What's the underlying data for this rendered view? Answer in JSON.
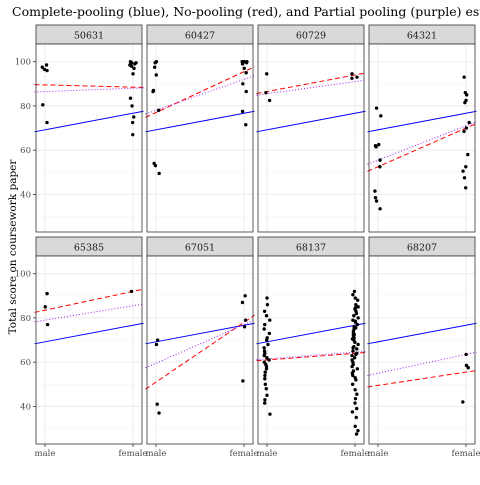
{
  "chart_data": {
    "type": "scatter",
    "title": "Complete-pooling (blue), No-pooling (red), and Partial pooling (purple) estimates",
    "ylabel": "Total score on coursework paper",
    "xlabel": "",
    "x_categories": [
      "male",
      "female"
    ],
    "yticks": [
      40,
      60,
      80,
      100
    ],
    "ylim": [
      23,
      108
    ],
    "grid": true,
    "layout": "2 rows x 4 columns of facets",
    "colors": {
      "points": "#000000",
      "complete_pooling": "#0000ff",
      "no_pooling": "#ff0000",
      "partial_pooling": "#a020f0",
      "strip_fill": "#d9d9d9",
      "grid": "#ebebeb",
      "panel_border": "#333333"
    },
    "facets": [
      {
        "id": "50631",
        "points": [
          [
            0,
            98.5
          ],
          [
            0,
            97.5
          ],
          [
            0,
            96.5
          ],
          [
            0,
            96
          ],
          [
            0,
            80.5
          ],
          [
            0,
            72.5
          ],
          [
            1,
            100
          ],
          [
            1,
            99.5
          ],
          [
            1,
            99.5
          ],
          [
            1,
            99
          ],
          [
            1,
            98.5
          ],
          [
            1,
            98
          ],
          [
            1,
            97
          ],
          [
            1,
            94.5
          ],
          [
            1,
            83.5
          ],
          [
            1,
            80
          ],
          [
            1,
            75
          ],
          [
            1,
            72.5
          ],
          [
            1,
            67
          ]
        ],
        "complete_pooling": [
          69.2,
          76.7
        ],
        "no_pooling": [
          89.5,
          88.5
        ],
        "partial_pooling": [
          86.5,
          88
        ]
      },
      {
        "id": "60427",
        "points": [
          [
            0,
            100
          ],
          [
            0,
            99.5
          ],
          [
            0,
            97.5
          ],
          [
            0,
            94
          ],
          [
            0,
            87
          ],
          [
            0,
            86.5
          ],
          [
            0,
            78
          ],
          [
            0,
            54
          ],
          [
            0,
            53
          ],
          [
            0,
            49.5
          ],
          [
            1,
            100
          ],
          [
            1,
            100
          ],
          [
            1,
            100
          ],
          [
            1,
            99.5
          ],
          [
            1,
            99
          ],
          [
            1,
            97
          ],
          [
            1,
            95
          ],
          [
            1,
            90
          ],
          [
            1,
            86.5
          ],
          [
            1,
            77.5
          ],
          [
            1,
            71.5
          ]
        ],
        "complete_pooling": [
          69.2,
          76.7
        ],
        "no_pooling": [
          77,
          95.5
        ],
        "partial_pooling": [
          78,
          92
        ]
      },
      {
        "id": "60729",
        "points": [
          [
            0,
            94.5
          ],
          [
            0,
            86
          ],
          [
            0,
            82.5
          ],
          [
            1,
            94.5
          ],
          [
            1,
            93
          ],
          [
            1,
            92.5
          ]
        ],
        "complete_pooling": [
          69.2,
          76.7
        ],
        "no_pooling": [
          86.5,
          94
        ],
        "partial_pooling": [
          85.5,
          91
        ]
      },
      {
        "id": "64321",
        "points": [
          [
            0,
            79
          ],
          [
            0,
            75.5
          ],
          [
            0,
            62.5
          ],
          [
            0,
            62
          ],
          [
            0,
            61.5
          ],
          [
            0,
            55.5
          ],
          [
            0,
            52.5
          ],
          [
            0,
            41.5
          ],
          [
            0,
            38.5
          ],
          [
            0,
            37
          ],
          [
            0,
            33.5
          ],
          [
            1,
            93
          ],
          [
            1,
            86
          ],
          [
            1,
            85
          ],
          [
            1,
            82.5
          ],
          [
            1,
            81.5
          ],
          [
            1,
            72.5
          ],
          [
            1,
            70
          ],
          [
            1,
            68.5
          ],
          [
            1,
            58
          ],
          [
            1,
            52.5
          ],
          [
            1,
            50.5
          ],
          [
            1,
            47.5
          ],
          [
            1,
            43
          ]
        ],
        "complete_pooling": [
          69.2,
          76.7
        ],
        "no_pooling": [
          52.5,
          70
        ],
        "partial_pooling": [
          55.5,
          71
        ]
      },
      {
        "id": "65385",
        "points": [
          [
            0,
            91
          ],
          [
            0,
            85
          ],
          [
            0,
            77
          ],
          [
            1,
            92
          ]
        ],
        "complete_pooling": [
          69.2,
          76.7
        ],
        "no_pooling": [
          83.5,
          92
        ],
        "partial_pooling": [
          79,
          85.5
        ]
      },
      {
        "id": "67051",
        "points": [
          [
            0,
            70
          ],
          [
            0,
            68
          ],
          [
            0,
            41
          ],
          [
            0,
            37
          ],
          [
            1,
            90
          ],
          [
            1,
            87
          ],
          [
            1,
            79
          ],
          [
            1,
            76
          ],
          [
            1,
            51.5
          ]
        ],
        "complete_pooling": [
          69.2,
          76.7
        ],
        "no_pooling": [
          51,
          78
        ],
        "partial_pooling": [
          59.5,
          77
        ]
      },
      {
        "id": "68137",
        "points": [
          [
            0,
            89
          ],
          [
            0,
            86
          ],
          [
            0,
            83
          ],
          [
            0,
            81
          ],
          [
            0,
            79
          ],
          [
            0,
            77
          ],
          [
            0,
            75
          ],
          [
            0,
            73
          ],
          [
            0,
            71
          ],
          [
            0,
            70
          ],
          [
            0,
            68
          ],
          [
            0,
            66.5
          ],
          [
            0,
            65
          ],
          [
            0,
            64
          ],
          [
            0,
            63
          ],
          [
            0,
            62
          ],
          [
            0,
            61
          ],
          [
            0,
            60
          ],
          [
            0,
            59
          ],
          [
            0,
            58
          ],
          [
            0,
            57
          ],
          [
            0,
            55.5
          ],
          [
            0,
            54
          ],
          [
            0,
            52.5
          ],
          [
            0,
            50
          ],
          [
            0,
            48
          ],
          [
            0,
            45
          ],
          [
            0,
            43
          ],
          [
            0,
            41.5
          ],
          [
            0,
            36.5
          ],
          [
            1,
            92
          ],
          [
            1,
            90.5
          ],
          [
            1,
            89
          ],
          [
            1,
            88
          ],
          [
            1,
            86
          ],
          [
            1,
            85
          ],
          [
            1,
            84.5
          ],
          [
            1,
            84
          ],
          [
            1,
            83
          ],
          [
            1,
            82
          ],
          [
            1,
            81
          ],
          [
            1,
            80
          ],
          [
            1,
            79
          ],
          [
            1,
            78.5
          ],
          [
            1,
            78
          ],
          [
            1,
            77
          ],
          [
            1,
            76
          ],
          [
            1,
            75.5
          ],
          [
            1,
            75
          ],
          [
            1,
            74
          ],
          [
            1,
            73
          ],
          [
            1,
            72.5
          ],
          [
            1,
            72
          ],
          [
            1,
            71
          ],
          [
            1,
            70.5
          ],
          [
            1,
            70
          ],
          [
            1,
            69
          ],
          [
            1,
            68
          ],
          [
            1,
            67
          ],
          [
            1,
            66.5
          ],
          [
            1,
            66
          ],
          [
            1,
            65
          ],
          [
            1,
            64
          ],
          [
            1,
            63.5
          ],
          [
            1,
            63
          ],
          [
            1,
            62
          ],
          [
            1,
            61
          ],
          [
            1,
            60
          ],
          [
            1,
            59
          ],
          [
            1,
            58
          ],
          [
            1,
            57
          ],
          [
            1,
            56
          ],
          [
            1,
            55
          ],
          [
            1,
            54
          ],
          [
            1,
            53
          ],
          [
            1,
            52
          ],
          [
            1,
            50
          ],
          [
            1,
            47.5
          ],
          [
            1,
            45.5
          ],
          [
            1,
            43.5
          ],
          [
            1,
            41.5
          ],
          [
            1,
            39
          ],
          [
            1,
            37.5
          ],
          [
            1,
            35
          ],
          [
            1,
            31
          ],
          [
            1,
            29
          ],
          [
            1,
            27.5
          ]
        ],
        "complete_pooling": [
          69.2,
          76.7
        ],
        "no_pooling": [
          61,
          64
        ],
        "partial_pooling": [
          61.5,
          64.5
        ]
      },
      {
        "id": "68207",
        "points": [
          [
            1,
            63.5
          ],
          [
            1,
            58.5
          ],
          [
            1,
            57.5
          ],
          [
            1,
            42
          ]
        ],
        "complete_pooling": [
          69.2,
          76.7
        ],
        "no_pooling": [
          49.5,
          55.5
        ],
        "partial_pooling": [
          55,
          63.5
        ]
      }
    ]
  }
}
